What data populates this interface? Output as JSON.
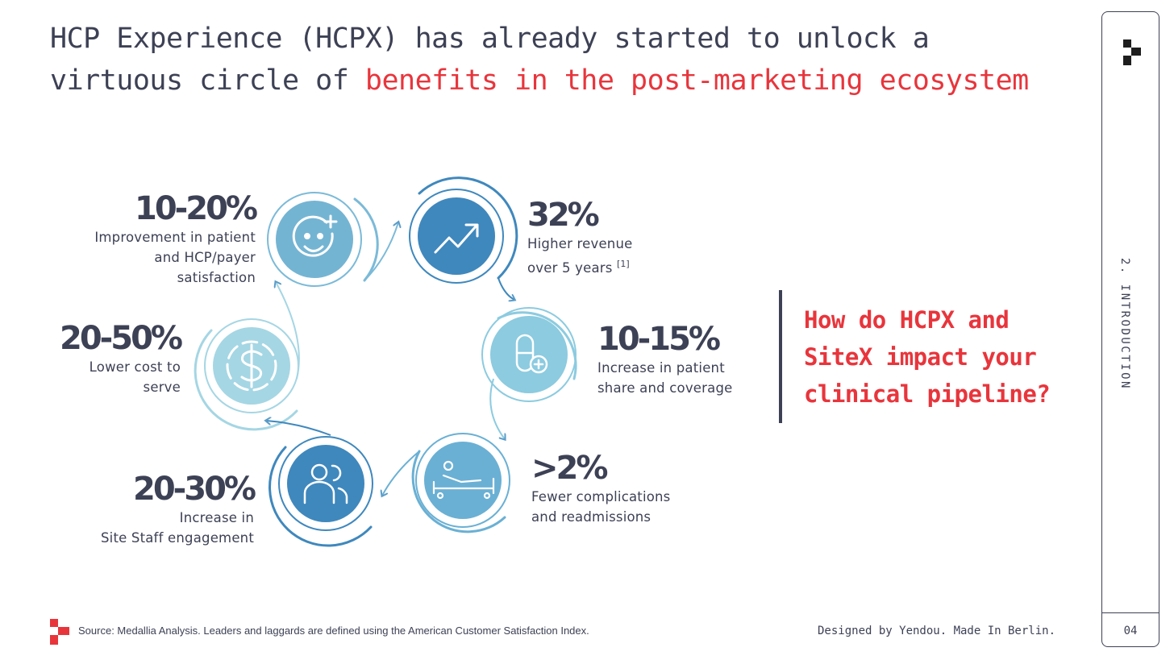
{
  "title": {
    "part1": "HCP Experience (HCPX) has already started to unlock a virtuous circle of ",
    "highlight": "benefits in the post-marketing ecosystem"
  },
  "stats": [
    {
      "value": "10-20%",
      "lines": [
        "Improvement in patient",
        "and HCP/payer",
        "satisfaction"
      ]
    },
    {
      "value": "32%",
      "lines": [
        "Higher revenue",
        "over 5 years"
      ],
      "footnote": "[1]"
    },
    {
      "value": "10-15%",
      "lines": [
        "Increase in patient",
        "share and coverage"
      ]
    },
    {
      "value": ">2%",
      "lines": [
        "Fewer complications",
        "and readmissions"
      ]
    },
    {
      "value": "20-30%",
      "lines": [
        "Increase in",
        "Site Staff engagement"
      ]
    },
    {
      "value": "20-50%",
      "lines": [
        "Lower cost to",
        "serve"
      ]
    }
  ],
  "icons": [
    "smiley-plus-icon",
    "trend-up-icon",
    "pill-plus-icon",
    "patient-bed-icon",
    "people-icon",
    "dollar-coin-icon"
  ],
  "question": {
    "lines": [
      "How do HCPX and",
      "SiteX impact your",
      "clinical pipeline?"
    ]
  },
  "side": {
    "section_label": "2. INTRODUCTION",
    "page_number": "04"
  },
  "footer": {
    "source": "Source: Medallia Analysis. Leaders and laggards are defined using the American Customer Satisfaction Index.",
    "credit": "Designed by Yendou. Made In Berlin."
  },
  "colors": {
    "accent": "#e8353c",
    "text": "#3d4155",
    "blue_dark": "#4a90c0",
    "blue_mid": "#6ab0d4",
    "blue_light": "#94cfe0"
  }
}
